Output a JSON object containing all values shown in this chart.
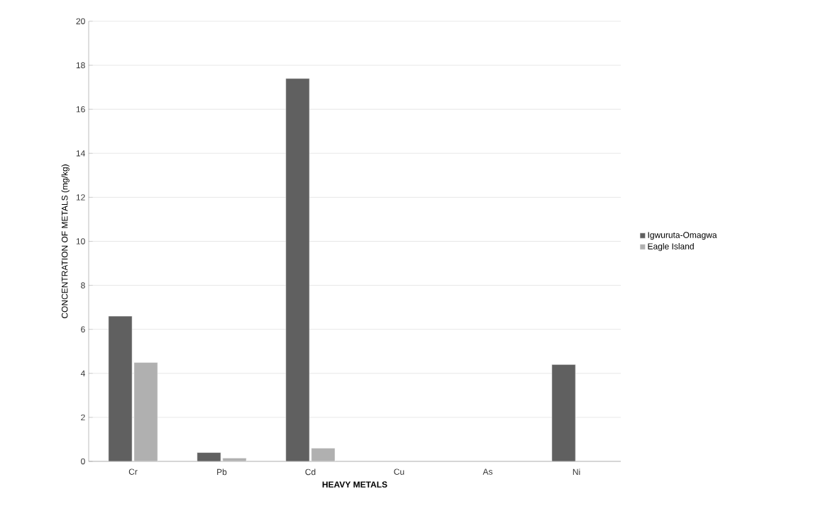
{
  "chart_data": {
    "type": "bar",
    "xlabel": "HEAVY METALS",
    "ylabel": "CONCENTRATION OF METALS (mg/kg)",
    "categories": [
      "Cr",
      "Pb",
      "Cd",
      "Cu",
      "As",
      "Ni"
    ],
    "series": [
      {
        "name": "Igwuruta-Omagwa",
        "color": "#606060",
        "values": [
          6.6,
          0.4,
          17.4,
          null,
          null,
          4.4
        ]
      },
      {
        "name": "Eagle Island",
        "color": "#b0b0b0",
        "values": [
          4.5,
          0.15,
          0.6,
          null,
          null,
          null
        ]
      }
    ],
    "ylim": [
      0,
      20
    ],
    "yticks": [
      0,
      2,
      4,
      6,
      8,
      10,
      12,
      14,
      16,
      18,
      20
    ],
    "grid": "y",
    "legend": "right"
  }
}
